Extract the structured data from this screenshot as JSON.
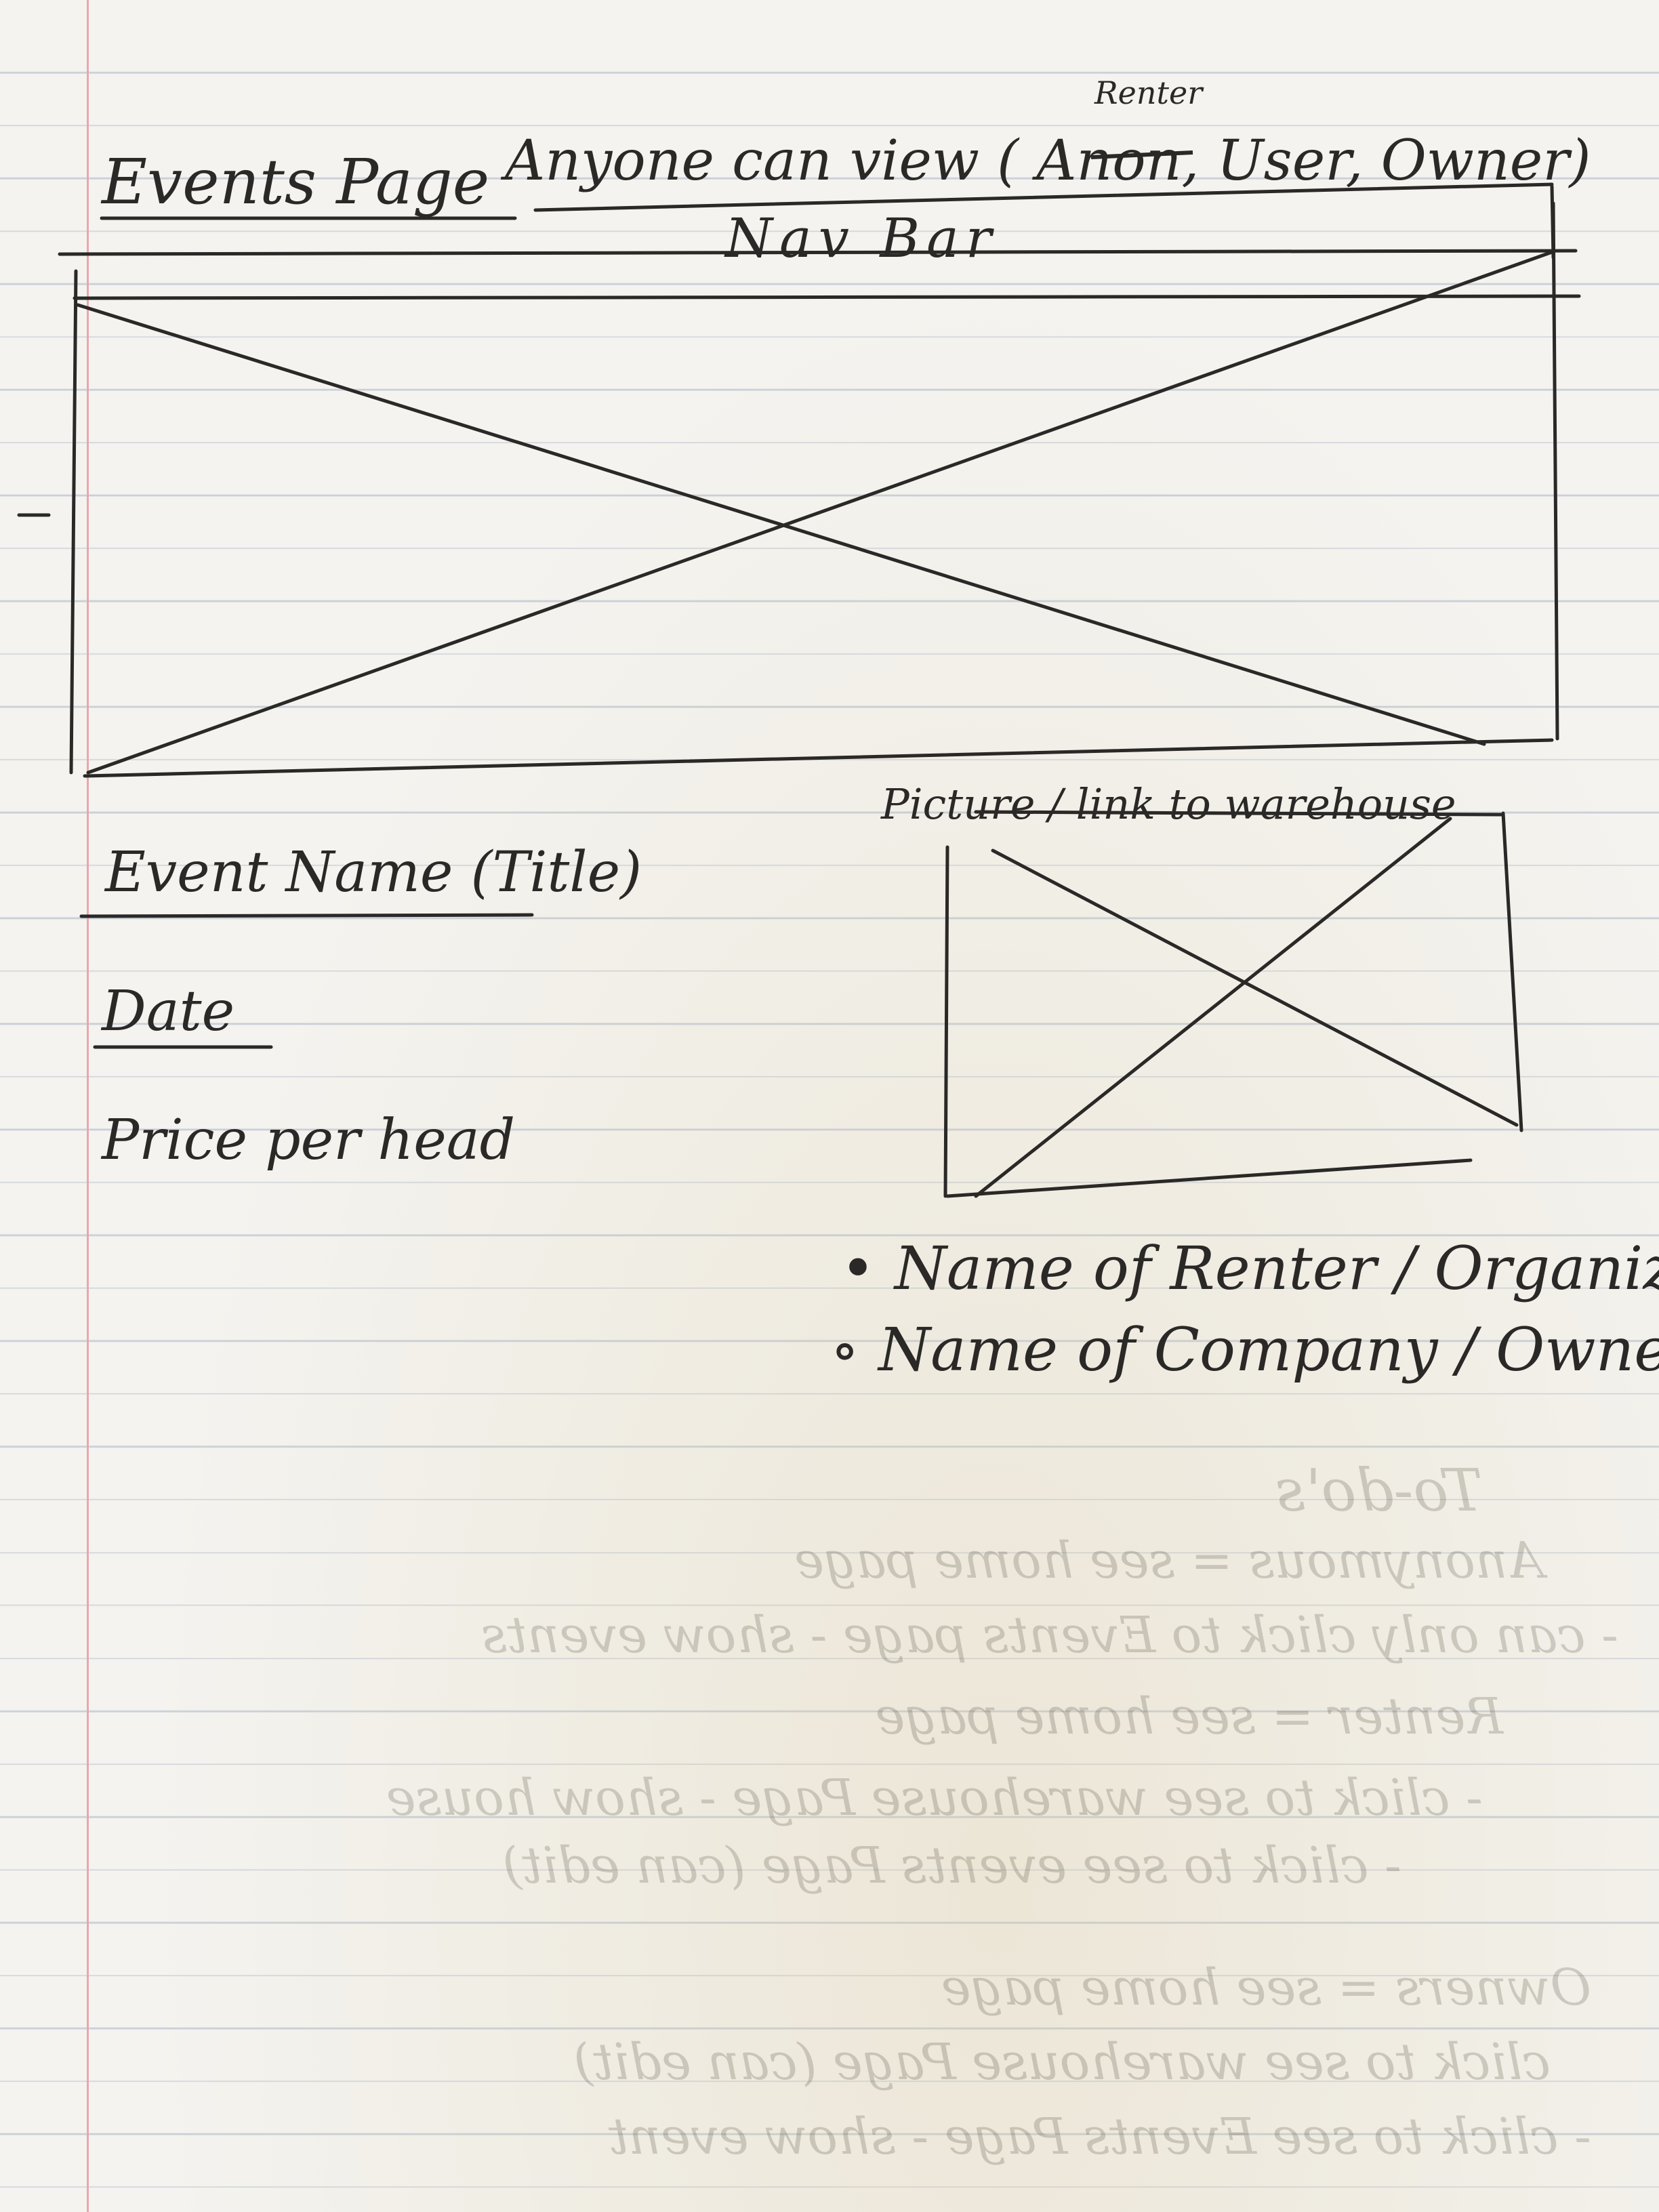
{
  "page": {
    "title": "Events Page",
    "access_note": "Anyone can view ( Anon, User, Owner)",
    "access_overwrite": "Renter",
    "nav_bar_label": "Nav Bar"
  },
  "hero_image": {
    "icon": "image-placeholder-x"
  },
  "event_details": {
    "name_label": "Event Name (Title)",
    "date_label": "Date",
    "price_label": "Price per head"
  },
  "warehouse": {
    "label": "Picture / link to warehouse",
    "icon": "image-placeholder-x",
    "bullets": [
      "Name of Renter / Organizer",
      "Name of Company / Owner"
    ]
  },
  "bleed_through": {
    "lines": [
      "To-do's",
      "Anonymous = see home page",
      "- can only click to Events page - show events",
      "Renter = see home page",
      "- click to see warehouse Page - show house",
      "- click to see events Page (can edit)",
      "Owners = see home page",
      "click to see warehouse Page (can edit)",
      "- click to see Events Page - show event"
    ]
  },
  "colors": {
    "ink": "#2b2927",
    "paper": "#f4f3ef",
    "rule": "#c9cfd8",
    "margin": "#e7a8ad"
  }
}
